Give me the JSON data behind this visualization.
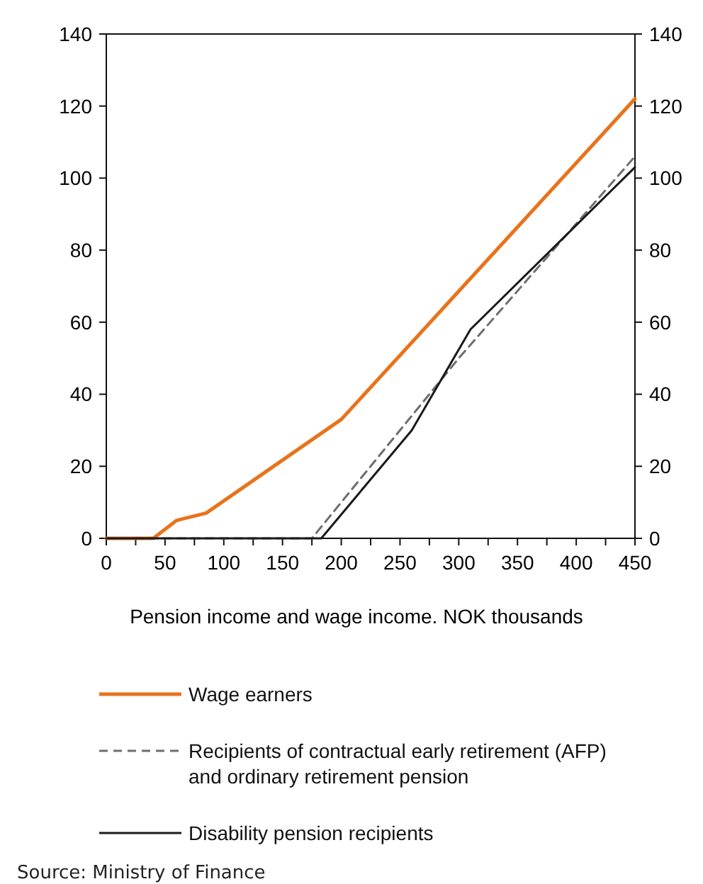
{
  "chart_data": {
    "type": "line",
    "xlabel": "Pension income and wage income. NOK thousands",
    "xlim": [
      0,
      450
    ],
    "xticks": [
      0,
      {
        "value": 25,
        "label": null
      },
      50,
      {
        "value": 75,
        "label": null
      },
      100,
      {
        "value": 125,
        "label": null
      },
      150,
      {
        "value": 175,
        "label": null
      },
      200,
      {
        "value": 225,
        "label": null
      },
      250,
      {
        "value": 275,
        "label": null
      },
      300,
      {
        "value": 325,
        "label": null
      },
      350,
      {
        "value": 375,
        "label": null
      },
      400,
      {
        "value": 425,
        "label": null
      },
      450
    ],
    "ylim": [
      0,
      140
    ],
    "yticks": [
      0,
      20,
      40,
      60,
      80,
      100,
      120,
      140
    ],
    "y2lim": [
      0,
      140
    ],
    "y2ticks": [
      0,
      20,
      40,
      60,
      80,
      100,
      120,
      140
    ],
    "grid": false,
    "legend": "bottom",
    "marker": "none",
    "series": [
      {
        "name": "Wage earners",
        "color": "#e8731c",
        "line_style": "solid",
        "x": [
          0,
          40,
          60,
          85,
          200,
          450
        ],
        "values": [
          0,
          0,
          5,
          7,
          33,
          122
        ]
      },
      {
        "name": "Recipients of contractual early retirement (AFP) and ordinary retirement pension",
        "color": "#6e6e6e",
        "line_style": "dashed",
        "x": [
          0,
          175,
          300,
          450
        ],
        "values": [
          0,
          0,
          50,
          106
        ]
      },
      {
        "name": "Disability pension recipients",
        "color": "#1a1a1a",
        "line_style": "solid",
        "x": [
          0,
          183,
          260,
          310,
          450
        ],
        "values": [
          0,
          0,
          30,
          58,
          103
        ]
      }
    ],
    "annotations": [
      "Source: Ministry of Finance"
    ]
  }
}
